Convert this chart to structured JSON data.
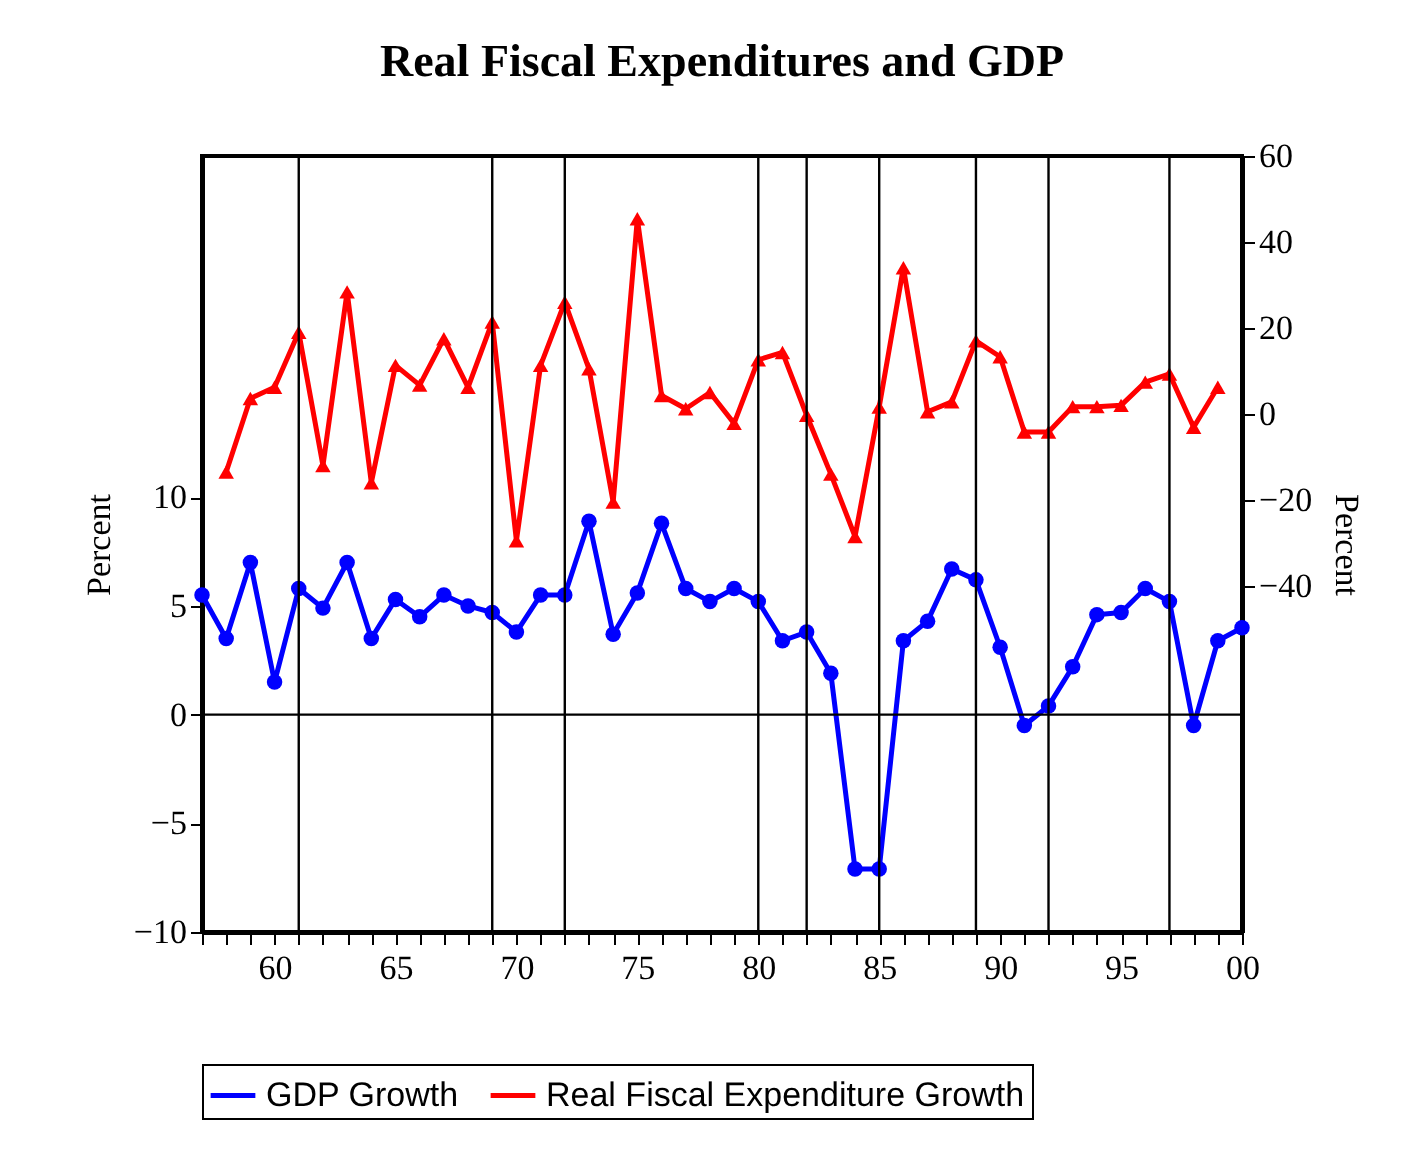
{
  "chart_data": {
    "type": "line",
    "title": "Real Fiscal Expenditures and GDP",
    "ylabel": "Percent",
    "y2label": "Percent",
    "xlim": [
      1957,
      2000
    ],
    "xticks": [
      {
        "value": 1957,
        "label": null
      },
      {
        "value": 1958,
        "label": null
      },
      {
        "value": 1959,
        "label": null
      },
      {
        "value": 1960,
        "label": "60"
      },
      {
        "value": 1961,
        "label": null
      },
      {
        "value": 1962,
        "label": null
      },
      {
        "value": 1963,
        "label": null
      },
      {
        "value": 1964,
        "label": null
      },
      {
        "value": 1965,
        "label": "65"
      },
      {
        "value": 1966,
        "label": null
      },
      {
        "value": 1967,
        "label": null
      },
      {
        "value": 1968,
        "label": null
      },
      {
        "value": 1969,
        "label": null
      },
      {
        "value": 1970,
        "label": "70"
      },
      {
        "value": 1971,
        "label": null
      },
      {
        "value": 1972,
        "label": null
      },
      {
        "value": 1973,
        "label": null
      },
      {
        "value": 1974,
        "label": null
      },
      {
        "value": 1975,
        "label": "75"
      },
      {
        "value": 1976,
        "label": null
      },
      {
        "value": 1977,
        "label": null
      },
      {
        "value": 1978,
        "label": null
      },
      {
        "value": 1979,
        "label": null
      },
      {
        "value": 1980,
        "label": "80"
      },
      {
        "value": 1981,
        "label": null
      },
      {
        "value": 1982,
        "label": null
      },
      {
        "value": 1983,
        "label": null
      },
      {
        "value": 1984,
        "label": null
      },
      {
        "value": 1985,
        "label": "85"
      },
      {
        "value": 1986,
        "label": null
      },
      {
        "value": 1987,
        "label": null
      },
      {
        "value": 1988,
        "label": null
      },
      {
        "value": 1989,
        "label": null
      },
      {
        "value": 1990,
        "label": "90"
      },
      {
        "value": 1991,
        "label": null
      },
      {
        "value": 1992,
        "label": null
      },
      {
        "value": 1993,
        "label": null
      },
      {
        "value": 1994,
        "label": null
      },
      {
        "value": 1995,
        "label": "95"
      },
      {
        "value": 1996,
        "label": null
      },
      {
        "value": 1997,
        "label": null
      },
      {
        "value": 1998,
        "label": null
      },
      {
        "value": 1999,
        "label": null
      },
      {
        "value": 2000,
        "label": "00"
      }
    ],
    "ylim": [
      -10,
      25.7
    ],
    "yticks": [
      -10,
      -5,
      0,
      5,
      10
    ],
    "y2lim": [
      -120.5,
      60
    ],
    "y2ticks": [
      -40,
      -20,
      0,
      20,
      40,
      60
    ],
    "grid": false,
    "legend": "bottom",
    "line_style": "solid",
    "series": [
      {
        "name": "GDP Growth",
        "color": "#0000ff",
        "marker": "circle",
        "x": [
          1957,
          1958,
          1959,
          1960,
          1961,
          1962,
          1963,
          1964,
          1965,
          1966,
          1967,
          1968,
          1969,
          1970,
          1971,
          1972,
          1973,
          1974,
          1975,
          1976,
          1977,
          1978,
          1979,
          1980,
          1981,
          1982,
          1983,
          1984,
          1985,
          1986,
          1987,
          1988,
          1989,
          1990,
          1991,
          1992,
          1993,
          1994,
          1995,
          1996,
          1997,
          1998,
          1999,
          2000
        ],
        "values": [
          5.5,
          3.5,
          7.0,
          1.5,
          5.8,
          4.9,
          7.0,
          3.5,
          5.3,
          4.5,
          5.5,
          5.0,
          4.7,
          3.8,
          5.5,
          5.5,
          8.9,
          3.7,
          5.6,
          8.8,
          5.8,
          5.2,
          5.8,
          5.2,
          3.4,
          3.8,
          1.9,
          -7.1,
          -7.1,
          3.4,
          4.3,
          6.7,
          6.2,
          3.1,
          -0.5,
          0.4,
          2.2,
          4.6,
          4.7,
          5.8,
          5.2,
          -0.5,
          3.4,
          4.0
        ]
      },
      {
        "name": "Real Fiscal Expenditure Growth",
        "color": "#ff0000",
        "marker": "triangle",
        "axis": "y2",
        "x": [
          1958,
          1959,
          1960,
          1961,
          1962,
          1963,
          1964,
          1965,
          1966,
          1967,
          1968,
          1969,
          1970,
          1971,
          1972,
          1973,
          1974,
          1975,
          1976,
          1977,
          1978,
          1979,
          1980,
          1981,
          1982,
          1983,
          1984,
          1985,
          1986,
          1987,
          1988,
          1989,
          1990,
          1991,
          1992,
          1993,
          1994,
          1995,
          1996,
          1997,
          1998,
          1999
        ],
        "values": [
          -13.5,
          3.6,
          6.2,
          19,
          -12,
          28.4,
          -16,
          11.3,
          6.7,
          17.5,
          6.2,
          21.4,
          -29.5,
          11.3,
          26,
          10.5,
          -20.5,
          45.4,
          4.3,
          1.2,
          5,
          -2.2,
          12.6,
          14.3,
          -0.3,
          -14,
          -28.5,
          1.6,
          34,
          0.5,
          2.8,
          17,
          13.3,
          -4.2,
          -4.2,
          1.7,
          1.7,
          2,
          7.4,
          9.3,
          -3.1,
          6.2
        ]
      }
    ],
    "ref_lines": [
      {
        "axis": "y",
        "value": 0,
        "color": "#000000"
      },
      {
        "axis": "x",
        "value": 1961,
        "color": "#000000"
      },
      {
        "axis": "x",
        "value": 1969,
        "color": "#000000"
      },
      {
        "axis": "x",
        "value": 1972,
        "color": "#000000"
      },
      {
        "axis": "x",
        "value": 1980,
        "color": "#000000"
      },
      {
        "axis": "x",
        "value": 1982,
        "color": "#000000"
      },
      {
        "axis": "x",
        "value": 1985,
        "color": "#000000"
      },
      {
        "axis": "x",
        "value": 1989,
        "color": "#000000"
      },
      {
        "axis": "x",
        "value": 1992,
        "color": "#000000"
      },
      {
        "axis": "x",
        "value": 1997,
        "color": "#000000"
      }
    ]
  }
}
